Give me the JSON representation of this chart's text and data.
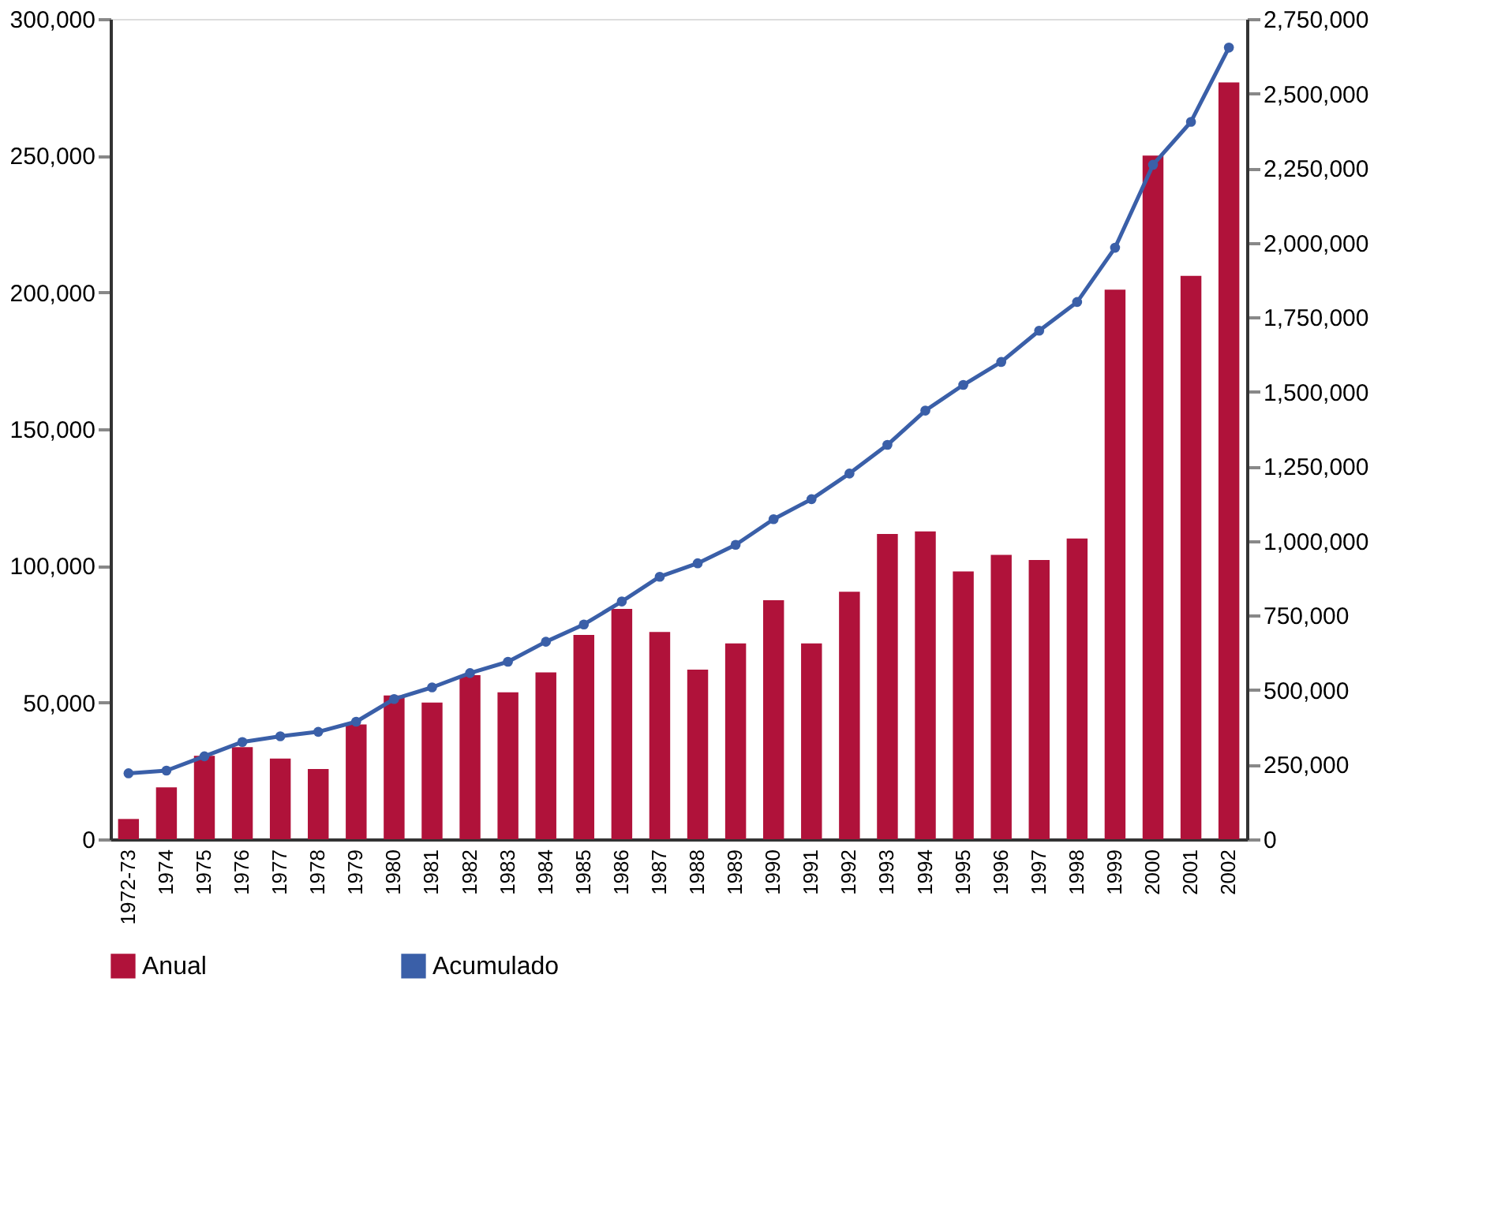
{
  "chart_data": {
    "type": "bar",
    "categories": [
      "1972-73",
      "1974",
      "1975",
      "1976",
      "1977",
      "1978",
      "1979",
      "1980",
      "1981",
      "1982",
      "1983",
      "1984",
      "1985",
      "1986",
      "1987",
      "1988",
      "1989",
      "1990",
      "1991",
      "1992",
      "1993",
      "1994",
      "1995",
      "1996",
      "1997",
      "1998",
      "1999",
      "2000",
      "2001",
      "2002"
    ],
    "series": [
      {
        "name": "Anual",
        "color": "#b0123a",
        "values": [
          7400,
          19000,
          30500,
          33700,
          29500,
          25700,
          42000,
          52600,
          50000,
          60000,
          53700,
          61000,
          74700,
          84200,
          75800,
          62000,
          71600,
          87400,
          71600,
          90500,
          111600,
          112600,
          97900,
          104000,
          102100,
          110000,
          201000,
          250000,
          206000,
          276800
        ]
      },
      {
        "name": "Acumulado",
        "type": "line",
        "axis": "y2",
        "color": "#3a5fa8",
        "marker": "circle",
        "values": [
          221000,
          230000,
          278000,
          326000,
          345000,
          360000,
          394000,
          470000,
          509000,
          557000,
          595000,
          662000,
          720000,
          797000,
          880000,
          925000,
          987000,
          1073000,
          1140000,
          1226000,
          1322000,
          1437000,
          1523000,
          1600000,
          1705000,
          1801000,
          1983000,
          2261000,
          2405000,
          2654000
        ]
      }
    ],
    "ylim": [
      0,
      300000
    ],
    "yticks": [
      0,
      {
        "value": 50000,
        "label": "50,000"
      },
      {
        "value": 100000,
        "label": "100,000"
      },
      {
        "value": 150000,
        "label": "150,000"
      },
      {
        "value": 200000,
        "label": "200,000"
      },
      {
        "value": 250000,
        "label": "250,000"
      },
      {
        "value": 300000,
        "label": "300,000"
      }
    ],
    "y2lim": [
      0,
      2750000
    ],
    "y2ticks": [
      0,
      {
        "value": 250000,
        "label": "250,000"
      },
      {
        "value": 500000,
        "label": "500,000"
      },
      {
        "value": 750000,
        "label": "750,000"
      },
      {
        "value": 1000000,
        "label": "1,000,000"
      },
      {
        "value": 1250000,
        "label": "1,250,000"
      },
      {
        "value": 1500000,
        "label": "1,500,000"
      },
      {
        "value": 1750000,
        "label": "1,750,000"
      },
      {
        "value": 2000000,
        "label": "2,000,000"
      },
      {
        "value": 2250000,
        "label": "2,250,000"
      },
      {
        "value": 2500000,
        "label": "2,500,000"
      },
      {
        "value": 2750000,
        "label": "2,750,000"
      }
    ],
    "grid": false,
    "legend": "bottom"
  }
}
